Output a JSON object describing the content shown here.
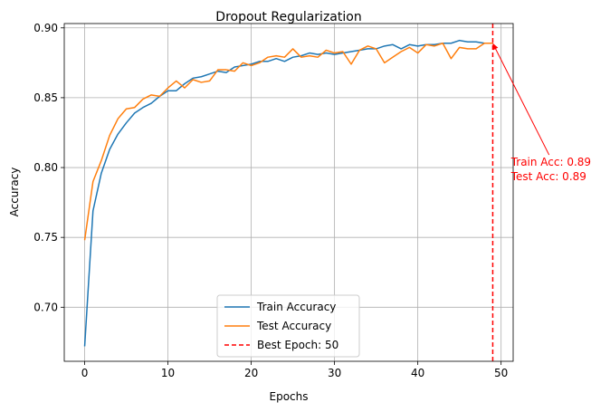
{
  "chart_data": {
    "type": "line",
    "title": "Dropout Regularization",
    "xlabel": "Epochs",
    "ylabel": "Accuracy",
    "xlim": [
      -2.45,
      51.45
    ],
    "ylim": [
      0.6613,
      0.9031
    ],
    "xticks": [
      0,
      10,
      20,
      30,
      40,
      50
    ],
    "yticks": [
      0.7,
      0.75,
      0.8,
      0.85,
      0.9
    ],
    "ytick_labels": [
      "0.70",
      "0.75",
      "0.80",
      "0.85",
      "0.90"
    ],
    "grid": true,
    "legend_position": "lower-center",
    "x": [
      0,
      1,
      2,
      3,
      4,
      5,
      6,
      7,
      8,
      9,
      10,
      11,
      12,
      13,
      14,
      15,
      16,
      17,
      18,
      19,
      20,
      21,
      22,
      23,
      24,
      25,
      26,
      27,
      28,
      29,
      30,
      31,
      32,
      33,
      34,
      35,
      36,
      37,
      38,
      39,
      40,
      41,
      42,
      43,
      44,
      45,
      46,
      47,
      48,
      49
    ],
    "series": [
      {
        "name": "Train Accuracy",
        "color": "#1f77b4",
        "values": [
          0.672,
          0.769,
          0.796,
          0.813,
          0.824,
          0.832,
          0.839,
          0.843,
          0.846,
          0.851,
          0.855,
          0.855,
          0.86,
          0.864,
          0.865,
          0.867,
          0.869,
          0.868,
          0.872,
          0.873,
          0.874,
          0.876,
          0.876,
          0.878,
          0.876,
          0.879,
          0.88,
          0.882,
          0.881,
          0.882,
          0.881,
          0.882,
          0.883,
          0.884,
          0.885,
          0.885,
          0.887,
          0.888,
          0.885,
          0.888,
          0.887,
          0.888,
          0.888,
          0.889,
          0.889,
          0.891,
          0.89,
          0.89,
          0.889,
          0.889
        ]
      },
      {
        "name": "Test Accuracy",
        "color": "#ff7f0e",
        "values": [
          0.748,
          0.79,
          0.805,
          0.823,
          0.835,
          0.842,
          0.843,
          0.849,
          0.852,
          0.851,
          0.857,
          0.862,
          0.857,
          0.863,
          0.861,
          0.862,
          0.87,
          0.87,
          0.869,
          0.875,
          0.873,
          0.875,
          0.879,
          0.88,
          0.879,
          0.885,
          0.879,
          0.88,
          0.879,
          0.884,
          0.882,
          0.883,
          0.874,
          0.884,
          0.887,
          0.885,
          0.875,
          0.879,
          0.883,
          0.886,
          0.882,
          0.888,
          0.887,
          0.889,
          0.878,
          0.886,
          0.885,
          0.885,
          0.889,
          0.889
        ]
      }
    ],
    "vline": {
      "x": 49,
      "label": "Best Epoch: 50",
      "color": "#ff0000"
    },
    "annotation": {
      "line1": "Train Acc: 0.89",
      "line2": "Test Acc: 0.89",
      "color": "#ff0000",
      "point": [
        49,
        0.889
      ],
      "text_pos": [
        51.2,
        0.8
      ]
    }
  }
}
